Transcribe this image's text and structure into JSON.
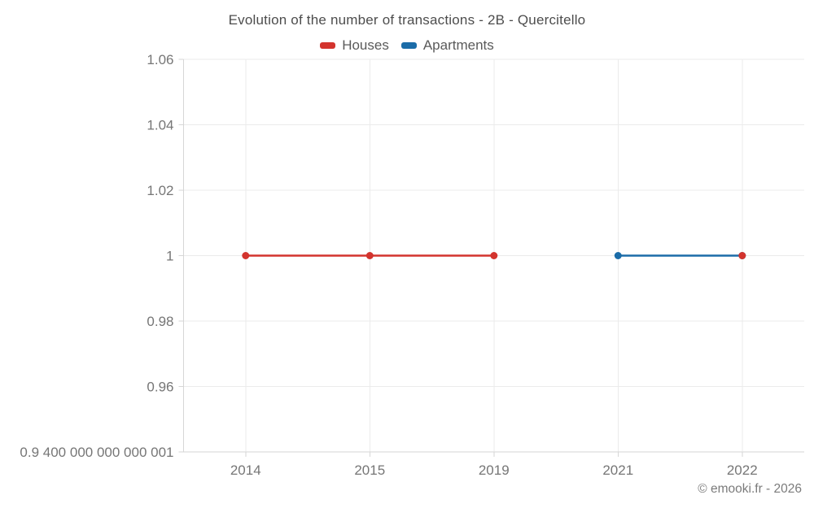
{
  "page": {
    "copyright": "© emooki.fr - 2026"
  },
  "chart_data": {
    "type": "line",
    "title": "Evolution of the number of transactions - 2B - Quercitello",
    "categories": [
      "2014",
      "2015",
      "2019",
      "2021",
      "2022"
    ],
    "series": [
      {
        "name": "Houses",
        "color": "#d3342e",
        "values": [
          1,
          1,
          1,
          null,
          1
        ]
      },
      {
        "name": "Apartments",
        "color": "#1b6ca8",
        "values": [
          null,
          null,
          null,
          1,
          1
        ]
      }
    ],
    "ylim": [
      0.9400000000000001,
      1.06
    ],
    "y_ticks": [
      {
        "value": 1.06,
        "label": "1.06"
      },
      {
        "value": 1.04,
        "label": "1.04"
      },
      {
        "value": 1.02,
        "label": "1.02"
      },
      {
        "value": 1.0,
        "label": "1"
      },
      {
        "value": 0.98,
        "label": "0.98"
      },
      {
        "value": 0.96,
        "label": "0.96"
      },
      {
        "value": 0.9400000000000001,
        "label": "0.9 400 000 000 000 001"
      }
    ],
    "legend_position": "top",
    "grid": true,
    "colors": {
      "grid_line": "#ebebeb",
      "axis_line": "#d6d6d6",
      "tick_label": "#767676",
      "title_text": "#4d4d4d"
    }
  }
}
